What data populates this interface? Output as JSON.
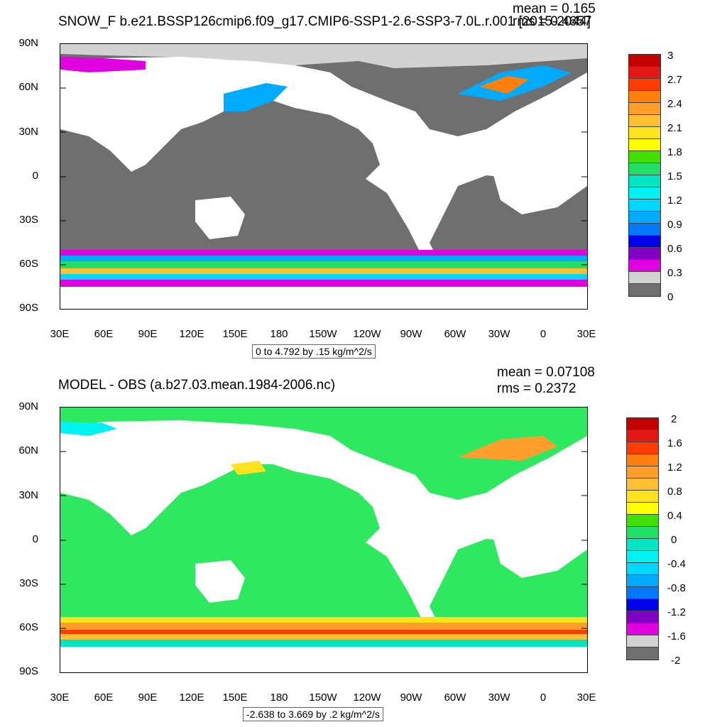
{
  "colors": {
    "ocean_fill_top": "#6f6f6f",
    "ocean_fill_bottom": "#2ee85f",
    "land": "#ffffff"
  },
  "panels": [
    {
      "title": "SNOW_F b.e21.BSSP126cmip6.f09_g17.CMIP6-SSP1-2.6-SSP3-7.0L.r.001 [2015-2044]",
      "mean_label": "mean = 0.165",
      "rms_label": "rms = 0.4657",
      "range_label": "0 to 4.792 by .15 kg/m^2/s",
      "colorbar_labels": [
        "3",
        "2.7",
        "2.4",
        "2.1",
        "1.8",
        "1.5",
        "1.2",
        "0.9",
        "0.6",
        "0.3",
        "0"
      ],
      "colorbar_colors": [
        "#c40000",
        "#e41717",
        "#ff3c00",
        "#ff7f0f",
        "#ff9e2a",
        "#ffc133",
        "#ffe21e",
        "#ffff00",
        "#40e000",
        "#22dd66",
        "#00e6c4",
        "#00f2f2",
        "#00d8ff",
        "#00aaff",
        "#0078ff",
        "#0000e8",
        "#8000c8",
        "#e000e0",
        "#d2d2d2",
        "#6f6f6f"
      ]
    },
    {
      "title": "MODEL - OBS (a.b27.03.mean.1984-2006.nc)",
      "mean_label": "mean = 0.07108",
      "rms_label": "rms = 0.2372",
      "range_label": "-2.638 to 3.669 by .2 kg/m^2/s",
      "colorbar_labels": [
        "2",
        "1.6",
        "1.2",
        "0.8",
        "0.4",
        "0",
        "-0.4",
        "-0.8",
        "-1.2",
        "-1.6",
        "-2"
      ],
      "colorbar_colors": [
        "#c40000",
        "#e41717",
        "#ff3c00",
        "#ff7f0f",
        "#ff9e2a",
        "#ffc133",
        "#ffe21e",
        "#ffff00",
        "#40e000",
        "#22dd66",
        "#00e6c4",
        "#00f2f2",
        "#00d8ff",
        "#00aaff",
        "#0078ff",
        "#0000e8",
        "#8000c8",
        "#e000e0",
        "#d2d2d2",
        "#6f6f6f"
      ]
    }
  ],
  "axes": {
    "lat_labels": [
      "90N",
      "60N",
      "30N",
      "0",
      "30S",
      "60S",
      "90S"
    ],
    "lon_labels": [
      "30E",
      "60E",
      "90E",
      "120E",
      "150E",
      "180",
      "150W",
      "120W",
      "90W",
      "60W",
      "30W",
      "0",
      "30E"
    ]
  },
  "chart_data": [
    {
      "type": "heatmap",
      "title": "SNOW_F b.e21.BSSP126cmip6.f09_g17.CMIP6-SSP1-2.6-SSP3-7.0L.r.001 [2015-2044]",
      "mean": 0.165,
      "rms": 0.4657,
      "range": "0 to 4.792 by .15 kg/m^2/s",
      "xlim": [
        30,
        390
      ],
      "ylim": [
        -90,
        90
      ],
      "colorbar_levels": [
        0,
        0.3,
        0.6,
        0.9,
        1.2,
        1.5,
        1.8,
        2.1,
        2.4,
        2.7,
        3
      ]
    },
    {
      "type": "heatmap",
      "title": "MODEL - OBS (a.b27.03.mean.1984-2006.nc)",
      "mean": 0.07108,
      "rms": 0.2372,
      "range": "-2.638 to 3.669 by .2 kg/m^2/s",
      "xlim": [
        30,
        390
      ],
      "ylim": [
        -90,
        90
      ],
      "colorbar_levels": [
        -2,
        -1.6,
        -1.2,
        -0.8,
        -0.4,
        0,
        0.4,
        0.8,
        1.2,
        1.6,
        2
      ]
    }
  ]
}
